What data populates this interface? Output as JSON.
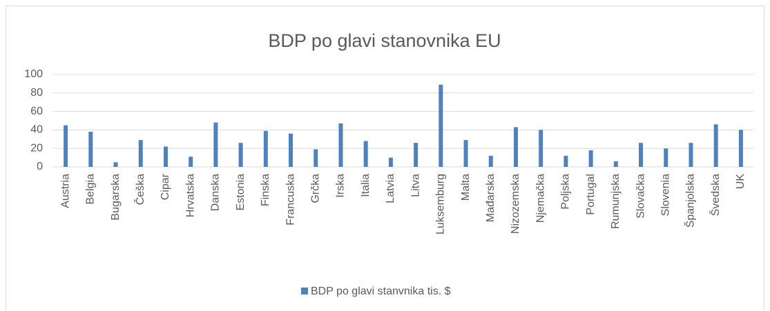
{
  "chart_data": {
    "type": "bar",
    "title": "BDP po glavi stanovnika EU",
    "categories": [
      "Austria",
      "Belgia",
      "Bugarska",
      "Češka",
      "Cipar",
      "Hrvatska",
      "Danska",
      "Estonia",
      "Finska",
      "Francuska",
      "Grčka",
      "Irska",
      "Italia",
      "Latvia",
      "Litva",
      "Luksemburg",
      "Malta",
      "Mađarska",
      "Nizozemska",
      "Njemačka",
      "Poljska",
      "Portugal",
      "Rumunjska",
      "Slovačka",
      "Slovenia",
      "Španjolska",
      "Švedska",
      "UK"
    ],
    "series": [
      {
        "name": "BDP po glavi stanvnika tis. $",
        "color": "#4f81bd",
        "values": [
          45,
          38,
          5,
          29,
          22,
          11,
          48,
          26,
          39,
          36,
          19,
          47,
          28,
          10,
          26,
          89,
          29,
          12,
          43,
          40,
          12,
          18,
          6,
          26,
          20,
          26,
          46,
          40
        ]
      }
    ],
    "ylim": [
      0,
      100
    ],
    "yticks": [
      0,
      20,
      40,
      60,
      80,
      100
    ],
    "grid": true,
    "legend": "bottom"
  }
}
